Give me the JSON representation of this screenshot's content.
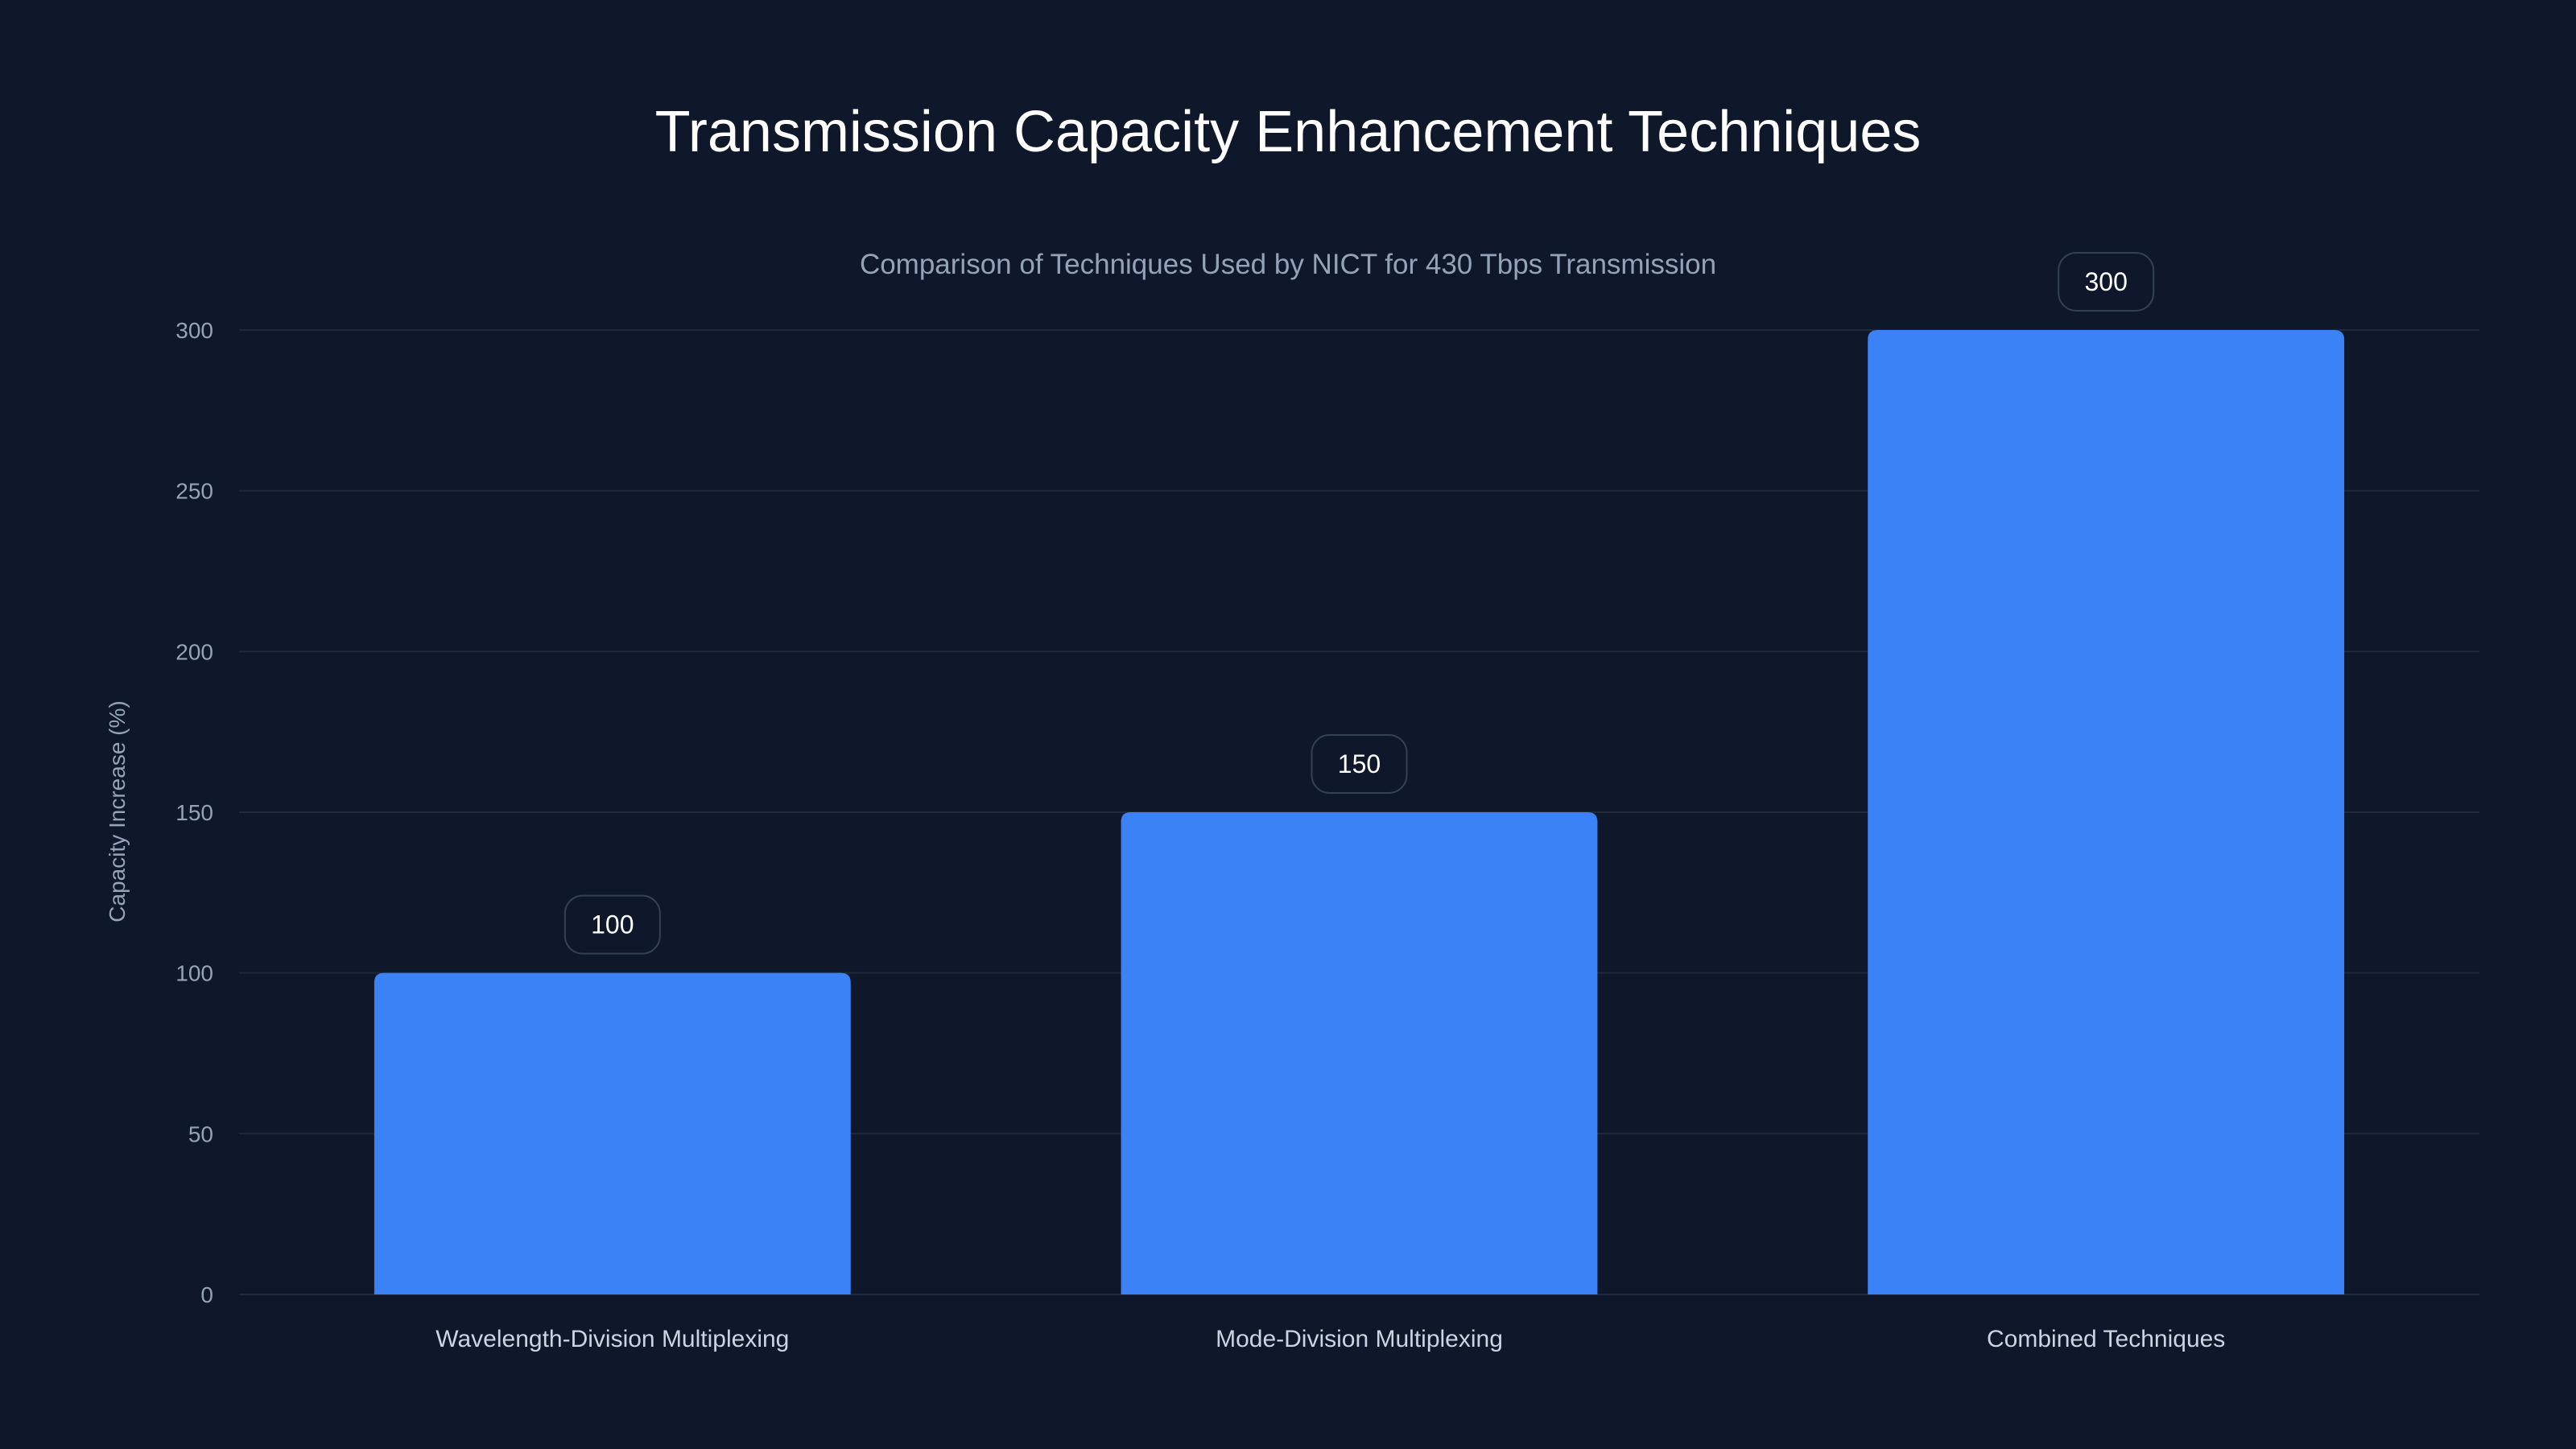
{
  "chart_data": {
    "type": "bar",
    "title": "Transmission Capacity Enhancement Techniques",
    "subtitle": "Comparison of Techniques Used by NICT for 430 Tbps Transmission",
    "xlabel": "",
    "ylabel": "Capacity Increase (%)",
    "categories": [
      "Wavelength-Division Multiplexing",
      "Mode-Division Multiplexing",
      "Combined Techniques"
    ],
    "values": [
      100,
      150,
      300
    ],
    "data_labels": [
      "100",
      "150",
      "300"
    ],
    "ylim": [
      0,
      300
    ],
    "yticks": [
      0,
      50,
      100,
      150,
      200,
      250,
      300
    ],
    "grid": true,
    "colors": {
      "background": "#0f172a",
      "bar": "#3b82f6",
      "grid": "#1e293b",
      "label_box_border": "#334155"
    }
  }
}
